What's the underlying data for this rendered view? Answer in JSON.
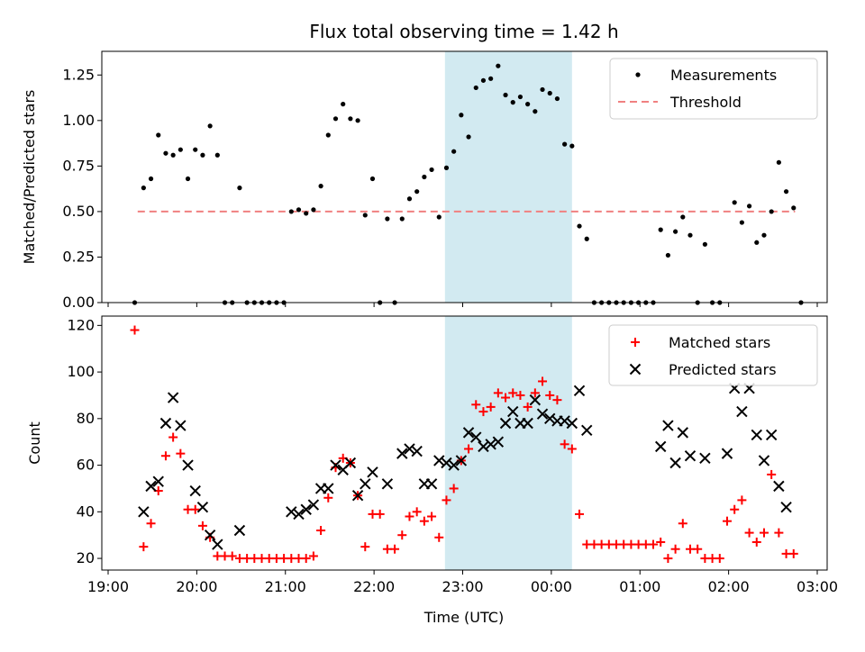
{
  "title": "Flux total observing time = 1.42 h",
  "xlabel": "Time (UTC)",
  "colors": {
    "measure": "#000000",
    "threshold": "#f08080",
    "highlight": "#add8e6",
    "matched": "#ff0000",
    "predicted": "#000000"
  },
  "chart_data": [
    {
      "type": "scatter",
      "ylabel": "Matched/Predicted stars",
      "ylim": [
        0,
        1.38
      ],
      "yticks": [
        "0.00",
        "0.25",
        "0.50",
        "0.75",
        "1.00",
        "1.25"
      ],
      "legend": {
        "position": "top-right",
        "measurements": "Measurements",
        "threshold": "Threshold"
      },
      "threshold": {
        "value": 0.5,
        "x": [
          "19:20",
          "02:45"
        ]
      },
      "highlight": [
        "22:48",
        "00:14"
      ],
      "series": [
        {
          "name": "Measurements",
          "points": [
            [
              "19:18",
              0.0
            ],
            [
              "19:24",
              0.63
            ],
            [
              "19:29",
              0.68
            ],
            [
              "19:34",
              0.92
            ],
            [
              "19:39",
              0.82
            ],
            [
              "19:44",
              0.81
            ],
            [
              "19:49",
              0.84
            ],
            [
              "19:54",
              0.68
            ],
            [
              "19:59",
              0.84
            ],
            [
              "20:04",
              0.81
            ],
            [
              "20:09",
              0.97
            ],
            [
              "20:14",
              0.81
            ],
            [
              "20:19",
              0.0
            ],
            [
              "20:24",
              0.0
            ],
            [
              "20:29",
              0.63
            ],
            [
              "20:34",
              0.0
            ],
            [
              "20:39",
              0.0
            ],
            [
              "20:44",
              0.0
            ],
            [
              "20:49",
              0.0
            ],
            [
              "20:54",
              0.0
            ],
            [
              "20:59",
              0.0
            ],
            [
              "21:04",
              0.5
            ],
            [
              "21:09",
              0.51
            ],
            [
              "21:14",
              0.49
            ],
            [
              "21:19",
              0.51
            ],
            [
              "21:24",
              0.64
            ],
            [
              "21:29",
              0.92
            ],
            [
              "21:34",
              1.01
            ],
            [
              "21:39",
              1.09
            ],
            [
              "21:44",
              1.01
            ],
            [
              "21:49",
              1.0
            ],
            [
              "21:54",
              0.48
            ],
            [
              "21:59",
              0.68
            ],
            [
              "22:04",
              0.0
            ],
            [
              "22:09",
              0.46
            ],
            [
              "22:14",
              0.0
            ],
            [
              "22:19",
              0.46
            ],
            [
              "22:24",
              0.57
            ],
            [
              "22:29",
              0.61
            ],
            [
              "22:34",
              0.69
            ],
            [
              "22:39",
              0.73
            ],
            [
              "22:44",
              0.47
            ],
            [
              "22:49",
              0.74
            ],
            [
              "22:54",
              0.83
            ],
            [
              "22:59",
              1.03
            ],
            [
              "23:04",
              0.91
            ],
            [
              "23:09",
              1.18
            ],
            [
              "23:14",
              1.22
            ],
            [
              "23:19",
              1.23
            ],
            [
              "23:24",
              1.3
            ],
            [
              "23:29",
              1.14
            ],
            [
              "23:34",
              1.1
            ],
            [
              "23:39",
              1.13
            ],
            [
              "23:44",
              1.09
            ],
            [
              "23:49",
              1.05
            ],
            [
              "23:54",
              1.17
            ],
            [
              "23:59",
              1.15
            ],
            [
              "00:04",
              1.12
            ],
            [
              "00:09",
              0.87
            ],
            [
              "00:14",
              0.86
            ],
            [
              "00:19",
              0.42
            ],
            [
              "00:24",
              0.35
            ],
            [
              "00:29",
              0.0
            ],
            [
              "00:34",
              0.0
            ],
            [
              "00:39",
              0.0
            ],
            [
              "00:44",
              0.0
            ],
            [
              "00:49",
              0.0
            ],
            [
              "00:54",
              0.0
            ],
            [
              "00:59",
              0.0
            ],
            [
              "01:04",
              0.0
            ],
            [
              "01:09",
              0.0
            ],
            [
              "01:14",
              0.4
            ],
            [
              "01:19",
              0.26
            ],
            [
              "01:24",
              0.39
            ],
            [
              "01:29",
              0.47
            ],
            [
              "01:34",
              0.37
            ],
            [
              "01:39",
              0.0
            ],
            [
              "01:44",
              0.32
            ],
            [
              "01:49",
              0.0
            ],
            [
              "01:54",
              0.0
            ],
            [
              "02:04",
              0.55
            ],
            [
              "02:09",
              0.44
            ],
            [
              "02:14",
              0.53
            ],
            [
              "02:19",
              0.33
            ],
            [
              "02:24",
              0.37
            ],
            [
              "02:29",
              0.5
            ],
            [
              "02:34",
              0.77
            ],
            [
              "02:39",
              0.61
            ],
            [
              "02:44",
              0.52
            ],
            [
              "02:49",
              0.0
            ]
          ]
        }
      ]
    },
    {
      "type": "scatter",
      "ylabel": "Count",
      "ylim": [
        15,
        124
      ],
      "yticks": [
        "20",
        "40",
        "60",
        "80",
        "100",
        "120"
      ],
      "xticks": [
        "19:00",
        "20:00",
        "21:00",
        "22:00",
        "23:00",
        "00:00",
        "01:00",
        "02:00",
        "03:00"
      ],
      "legend": {
        "position": "top-right",
        "matched": "Matched stars",
        "predicted": "Predicted stars"
      },
      "highlight": [
        "22:48",
        "00:14"
      ],
      "series": [
        {
          "name": "Matched stars",
          "points": [
            [
              "19:18",
              118
            ],
            [
              "19:24",
              25
            ],
            [
              "19:29",
              35
            ],
            [
              "19:34",
              49
            ],
            [
              "19:39",
              64
            ],
            [
              "19:44",
              72
            ],
            [
              "19:49",
              65
            ],
            [
              "19:54",
              41
            ],
            [
              "19:59",
              41
            ],
            [
              "20:04",
              34
            ],
            [
              "20:09",
              29
            ],
            [
              "20:14",
              21
            ],
            [
              "20:19",
              21
            ],
            [
              "20:24",
              21
            ],
            [
              "20:29",
              20
            ],
            [
              "20:34",
              20
            ],
            [
              "20:39",
              20
            ],
            [
              "20:44",
              20
            ],
            [
              "20:49",
              20
            ],
            [
              "20:54",
              20
            ],
            [
              "20:59",
              20
            ],
            [
              "21:04",
              20
            ],
            [
              "21:09",
              20
            ],
            [
              "21:14",
              20
            ],
            [
              "21:19",
              21
            ],
            [
              "21:24",
              32
            ],
            [
              "21:29",
              46
            ],
            [
              "21:34",
              59
            ],
            [
              "21:39",
              63
            ],
            [
              "21:44",
              61
            ],
            [
              "21:49",
              47
            ],
            [
              "21:54",
              25
            ],
            [
              "21:59",
              39
            ],
            [
              "22:04",
              39
            ],
            [
              "22:09",
              24
            ],
            [
              "22:14",
              24
            ],
            [
              "22:19",
              30
            ],
            [
              "22:24",
              38
            ],
            [
              "22:29",
              40
            ],
            [
              "22:34",
              36
            ],
            [
              "22:39",
              38
            ],
            [
              "22:44",
              29
            ],
            [
              "22:49",
              45
            ],
            [
              "22:54",
              50
            ],
            [
              "22:59",
              62
            ],
            [
              "23:04",
              67
            ],
            [
              "23:09",
              86
            ],
            [
              "23:14",
              83
            ],
            [
              "23:19",
              85
            ],
            [
              "23:24",
              91
            ],
            [
              "23:29",
              89
            ],
            [
              "23:34",
              91
            ],
            [
              "23:39",
              90
            ],
            [
              "23:44",
              85
            ],
            [
              "23:49",
              91
            ],
            [
              "23:54",
              96
            ],
            [
              "23:59",
              90
            ],
            [
              "00:04",
              88
            ],
            [
              "00:09",
              69
            ],
            [
              "00:14",
              67
            ],
            [
              "00:19",
              39
            ],
            [
              "00:24",
              26
            ],
            [
              "00:29",
              26
            ],
            [
              "00:34",
              26
            ],
            [
              "00:39",
              26
            ],
            [
              "00:44",
              26
            ],
            [
              "00:49",
              26
            ],
            [
              "00:54",
              26
            ],
            [
              "00:59",
              26
            ],
            [
              "01:04",
              26
            ],
            [
              "01:09",
              26
            ],
            [
              "01:14",
              27
            ],
            [
              "01:19",
              20
            ],
            [
              "01:24",
              24
            ],
            [
              "01:29",
              35
            ],
            [
              "01:34",
              24
            ],
            [
              "01:39",
              24
            ],
            [
              "01:44",
              20
            ],
            [
              "01:49",
              20
            ],
            [
              "01:54",
              20
            ],
            [
              "01:59",
              36
            ],
            [
              "02:04",
              41
            ],
            [
              "02:09",
              45
            ],
            [
              "02:14",
              31
            ],
            [
              "02:19",
              27
            ],
            [
              "02:24",
              31
            ],
            [
              "02:29",
              56
            ],
            [
              "02:34",
              31
            ],
            [
              "02:39",
              22
            ],
            [
              "02:44",
              22
            ]
          ]
        },
        {
          "name": "Predicted stars",
          "points": [
            [
              "19:24",
              40
            ],
            [
              "19:29",
              51
            ],
            [
              "19:34",
              53
            ],
            [
              "19:39",
              78
            ],
            [
              "19:44",
              89
            ],
            [
              "19:49",
              77
            ],
            [
              "19:54",
              60
            ],
            [
              "19:59",
              49
            ],
            [
              "20:04",
              42
            ],
            [
              "20:09",
              30
            ],
            [
              "20:14",
              26
            ],
            [
              "20:29",
              32
            ],
            [
              "21:04",
              40
            ],
            [
              "21:09",
              39
            ],
            [
              "21:14",
              41
            ],
            [
              "21:19",
              43
            ],
            [
              "21:24",
              50
            ],
            [
              "21:29",
              50
            ],
            [
              "21:34",
              60
            ],
            [
              "21:39",
              58
            ],
            [
              "21:44",
              61
            ],
            [
              "21:49",
              47
            ],
            [
              "21:54",
              52
            ],
            [
              "21:59",
              57
            ],
            [
              "22:09",
              52
            ],
            [
              "22:19",
              65
            ],
            [
              "22:24",
              67
            ],
            [
              "22:29",
              66
            ],
            [
              "22:34",
              52
            ],
            [
              "22:39",
              52
            ],
            [
              "22:44",
              62
            ],
            [
              "22:49",
              61
            ],
            [
              "22:54",
              60
            ],
            [
              "22:59",
              62
            ],
            [
              "23:04",
              74
            ],
            [
              "23:09",
              72
            ],
            [
              "23:14",
              68
            ],
            [
              "23:19",
              69
            ],
            [
              "23:24",
              70
            ],
            [
              "23:29",
              78
            ],
            [
              "23:34",
              83
            ],
            [
              "23:39",
              78
            ],
            [
              "23:44",
              78
            ],
            [
              "23:49",
              88
            ],
            [
              "23:54",
              82
            ],
            [
              "23:59",
              80
            ],
            [
              "00:04",
              79
            ],
            [
              "00:09",
              79
            ],
            [
              "00:14",
              78
            ],
            [
              "00:19",
              92
            ],
            [
              "00:24",
              75
            ],
            [
              "01:14",
              68
            ],
            [
              "01:19",
              77
            ],
            [
              "01:24",
              61
            ],
            [
              "01:29",
              74
            ],
            [
              "01:34",
              64
            ],
            [
              "01:44",
              63
            ],
            [
              "01:59",
              65
            ],
            [
              "02:04",
              93
            ],
            [
              "02:09",
              83
            ],
            [
              "02:14",
              93
            ],
            [
              "02:19",
              73
            ],
            [
              "02:24",
              62
            ],
            [
              "02:29",
              73
            ],
            [
              "02:34",
              51
            ],
            [
              "02:39",
              42
            ]
          ]
        }
      ]
    }
  ]
}
